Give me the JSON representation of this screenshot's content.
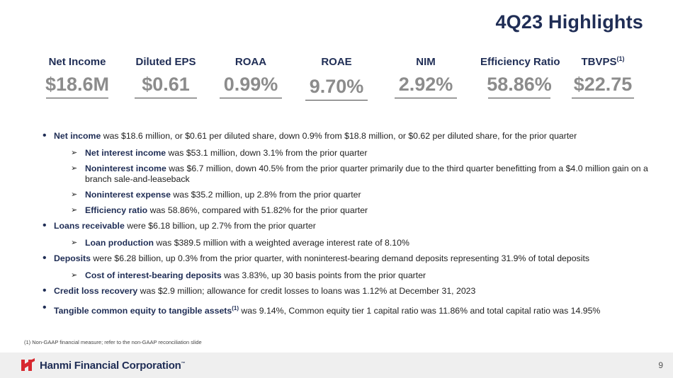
{
  "title": "4Q23 Highlights",
  "metrics": [
    {
      "label": "Net Income",
      "sup": "",
      "value": "$18.6M"
    },
    {
      "label": "Diluted EPS",
      "sup": "",
      "value": "$0.61"
    },
    {
      "label": "ROAA",
      "sup": "",
      "value": "0.99%"
    },
    {
      "label": "ROAE",
      "sup": "",
      "value": "9.70%"
    },
    {
      "label": "NIM",
      "sup": "",
      "value": "2.92%"
    },
    {
      "label": "Efficiency Ratio",
      "sup": "",
      "value": "58.86%"
    },
    {
      "label": "TBVPS",
      "sup": "(1)",
      "value": "$22.75"
    }
  ],
  "bullets": [
    {
      "level": 1,
      "bold": "Net income",
      "sup": "",
      "text": " was $18.6 million, or $0.61 per diluted share, down 0.9% from $18.8 million, or $0.62 per diluted share, for the prior quarter"
    },
    {
      "level": 2,
      "bold": "Net interest income",
      "sup": "",
      "text": " was $53.1 million, down 3.1% from the prior quarter"
    },
    {
      "level": 2,
      "bold": "Noninterest income",
      "sup": "",
      "text": " was $6.7 million, down 40.5% from the prior quarter primarily due to the third quarter benefitting from a $4.0 million gain on a branch sale-and-leaseback"
    },
    {
      "level": 2,
      "bold": "Noninterest expense",
      "sup": "",
      "text": " was $35.2 million, up 2.8% from the prior quarter"
    },
    {
      "level": 2,
      "bold": "Efficiency ratio",
      "sup": "",
      "text": " was 58.86%, compared with 51.82% for the prior quarter"
    },
    {
      "level": 1,
      "bold": "Loans receivable",
      "sup": "",
      "text": " were $6.18 billion, up 2.7% from the prior quarter"
    },
    {
      "level": 2,
      "bold": "Loan production",
      "sup": "",
      "text": " was $389.5 million with a weighted average interest rate of 8.10%"
    },
    {
      "level": 1,
      "bold": "Deposits",
      "sup": "",
      "text": " were $6.28 billion, up 0.3% from the prior quarter, with noninterest-bearing demand deposits representing 31.9% of total deposits"
    },
    {
      "level": 2,
      "bold": "Cost of interest-bearing deposits",
      "sup": "",
      "text": " was 3.83%, up 30 basis points from the prior quarter"
    },
    {
      "level": 1,
      "bold": "Credit loss recovery",
      "sup": "",
      "text": " was $2.9 million; allowance for credit losses to loans was 1.12% at December 31, 2023"
    },
    {
      "level": 1,
      "bold": "Tangible common equity to tangible assets",
      "sup": "(1)",
      "text": " was 9.14%, Common equity tier 1 capital ratio was 11.86% and total capital ratio was 14.95%"
    }
  ],
  "footnote": "(1)    Non-GAAP financial measure; refer to the non-GAAP reconciliation slide",
  "footer": {
    "brand": "Hanmi Financial Corporation",
    "trademark": "™",
    "page_number": "9"
  },
  "colors": {
    "navy": "#1f2d55",
    "value_gray": "#8c8c8c",
    "logo_red": "#d7282f"
  }
}
